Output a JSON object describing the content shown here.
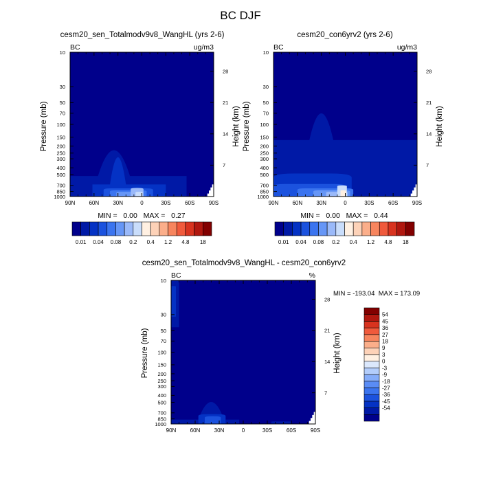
{
  "figure": {
    "title": "BC DJF"
  },
  "colors": {
    "levels_abs": [
      "#00008b",
      "#0019a6",
      "#0432c4",
      "#1b52de",
      "#3b74ef",
      "#6696f6",
      "#9ab9f9",
      "#c9ddfb",
      "#fff0e2",
      "#fdd2b8",
      "#fbae8a",
      "#f7855e",
      "#f05a3c",
      "#d8331f",
      "#b0170f",
      "#820000"
    ],
    "levels_diff": [
      "#00008b",
      "#0019a6",
      "#0432c4",
      "#1b52de",
      "#3b74ef",
      "#5a8cf5",
      "#86adf9",
      "#b3cdfb",
      "#dbe8fd",
      "#fff0e2",
      "#fdd2b8",
      "#fbae8a",
      "#f7855e",
      "#f05a3c",
      "#d8331f",
      "#b0170f",
      "#820000"
    ]
  },
  "chart_data": [
    {
      "type": "heatmap",
      "title": "cesm20_sen_Totalmodv9v8_WangHL (yrs 2-6)",
      "corner_left": "BC",
      "corner_right": "ug/m3",
      "xlabel": "",
      "ylabel": "Pressure (mb)",
      "ylabel_right": "Height (km)",
      "x_ticks": [
        "90N",
        "60N",
        "30N",
        "0",
        "30S",
        "60S",
        "90S"
      ],
      "y_ticks": [
        "10",
        "30",
        "50",
        "70",
        "100",
        "150",
        "200",
        "250",
        "300",
        "400",
        "500",
        "700",
        "850",
        "1000"
      ],
      "y_ticks_right": [
        "28",
        "21",
        "14",
        "7"
      ],
      "stats": "MIN =   0.00   MAX =   0.27",
      "colorbar_labels": [
        "0.01",
        "0.04",
        "0.08",
        "0.2",
        "0.4",
        "1.2",
        "4.8",
        "18"
      ],
      "background_level": 0,
      "regions": [
        {
          "lat_from": 90,
          "lat_to": -56,
          "p_top": 520,
          "level": 1,
          "bump": [
            35,
            20,
            100
          ]
        },
        {
          "lat_from": 62,
          "lat_to": -30,
          "p_top": 680,
          "level": 2,
          "bump": [
            30,
            10,
            120
          ]
        },
        {
          "lat_from": 48,
          "lat_to": -14,
          "p_top": 770,
          "level": 3
        },
        {
          "lat_from": 40,
          "lat_to": -6,
          "p_top": 820,
          "level": 4
        },
        {
          "lat_from": 32,
          "lat_to": -2,
          "p_top": 860,
          "level": 5
        },
        {
          "lat_from": 14,
          "lat_to": -2,
          "p_top": 760,
          "level": 6
        },
        {
          "lat_from": 8,
          "lat_to": -1,
          "p_top": 860,
          "level": 7
        }
      ],
      "terrain": {
        "start_lat": -82,
        "p_top": 680
      }
    },
    {
      "type": "heatmap",
      "title": "cesm20_con6yrv2 (yrs 2-6)",
      "corner_left": "BC",
      "corner_right": "ug/m3",
      "xlabel": "",
      "ylabel": "Pressure (mb)",
      "ylabel_right": "Height (km)",
      "x_ticks": [
        "90N",
        "60N",
        "30N",
        "0",
        "30S",
        "60S",
        "90S"
      ],
      "y_ticks": [
        "10",
        "30",
        "50",
        "70",
        "100",
        "150",
        "200",
        "250",
        "300",
        "400",
        "500",
        "700",
        "850",
        "1000"
      ],
      "y_ticks_right": [
        "28",
        "21",
        "14",
        "7"
      ],
      "stats": "MIN =   0.00   MAX =   0.44",
      "colorbar_labels": [
        "0.01",
        "0.04",
        "0.08",
        "0.2",
        "0.4",
        "1.2",
        "4.8",
        "18"
      ],
      "background_level": 0,
      "regions": [
        {
          "lat_from": 90,
          "lat_to": -90,
          "p_top": 165,
          "level": 1,
          "bump": [
            30,
            15,
            30
          ]
        },
        {
          "lat_from": 90,
          "lat_to": -8,
          "p_top": 480,
          "level": 2
        },
        {
          "lat_from": 90,
          "lat_to": 0,
          "p_top": 670,
          "level": 3
        },
        {
          "lat_from": 60,
          "lat_to": -10,
          "p_top": 770,
          "level": 4
        },
        {
          "lat_from": 40,
          "lat_to": -6,
          "p_top": 820,
          "level": 5
        },
        {
          "lat_from": 24,
          "lat_to": -3,
          "p_top": 860,
          "level": 6
        },
        {
          "lat_from": 10,
          "lat_to": -2,
          "p_top": 700,
          "level": 7
        },
        {
          "lat_from": 6,
          "lat_to": -1,
          "p_top": 820,
          "level": 8
        }
      ],
      "terrain": {
        "start_lat": -82,
        "p_top": 680
      }
    },
    {
      "type": "heatmap",
      "title": "cesm20_sen_Totalmodv9v8_WangHL - cesm20_con6yrv2",
      "corner_left": "BC",
      "corner_right": "%",
      "xlabel": "",
      "ylabel": "Pressure (mb)",
      "ylabel_right": "Height (km)",
      "x_ticks": [
        "90N",
        "60N",
        "30N",
        "0",
        "30S",
        "60S",
        "90S"
      ],
      "y_ticks": [
        "10",
        "30",
        "50",
        "70",
        "100",
        "150",
        "200",
        "250",
        "300",
        "400",
        "500",
        "700",
        "850",
        "1000"
      ],
      "y_ticks_right": [
        "28",
        "21",
        "14",
        "7"
      ],
      "stats": "MIN = -193.04  MAX = 173.09",
      "colorbar_labels": [
        "54",
        "45",
        "36",
        "27",
        "18",
        "9",
        "3",
        "0",
        "-3",
        "-9",
        "-18",
        "-27",
        "-36",
        "-45",
        "-54"
      ],
      "background_level": 0,
      "regions": [
        {
          "lat_from": 90,
          "lat_to": 80,
          "p_top": 10,
          "p_bottom": 45,
          "level": 1
        },
        {
          "lat_from": 90,
          "lat_to": 84,
          "p_top": 12,
          "p_bottom": 32,
          "level": 2
        },
        {
          "lat_from": 90,
          "lat_to": 5,
          "p_top": 870,
          "level": 1,
          "bump": [
            40,
            16,
            280
          ]
        },
        {
          "lat_from": 56,
          "lat_to": 22,
          "p_top": 730,
          "level": 2
        },
        {
          "lat_from": 48,
          "lat_to": 28,
          "p_top": 780,
          "level": 3
        },
        {
          "lat_from": -35,
          "lat_to": -60,
          "p_top": 920,
          "level": 1
        }
      ],
      "terrain": {
        "start_lat": -82,
        "p_top": 680
      }
    }
  ]
}
